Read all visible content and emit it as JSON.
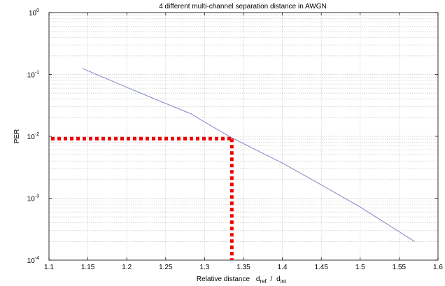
{
  "chart_data": {
    "type": "line",
    "title": "4 different multi-channel separation distance in AWGN",
    "xlabel": {
      "prefix": "Relative distance",
      "num_base": "d",
      "num_sub": "ref",
      "sep": "/",
      "den_base": "d",
      "den_sub": "int"
    },
    "ylabel": "PER",
    "xlim": [
      1.1,
      1.6
    ],
    "ylim": [
      0.0001,
      1
    ],
    "yscale": "log",
    "grid": true,
    "x_ticks": [
      "1.1",
      "1.15",
      "1.2",
      "1.25",
      "1.3",
      "1.35",
      "1.4",
      "1.45",
      "1.5",
      "1.55",
      "1.6"
    ],
    "y_ticks": [
      {
        "base": "10",
        "exp": "0",
        "value": 1
      },
      {
        "base": "10",
        "exp": "-1",
        "value": 0.1
      },
      {
        "base": "10",
        "exp": "-2",
        "value": 0.01
      },
      {
        "base": "10",
        "exp": "-3",
        "value": 0.001
      },
      {
        "base": "10",
        "exp": "-4",
        "value": 0.0001
      }
    ],
    "series": [
      {
        "color": "#8088c0",
        "x": [
          1.143,
          1.2,
          1.25,
          1.283,
          1.3,
          1.335,
          1.4,
          1.45,
          1.5,
          1.57
        ],
        "y": [
          0.125,
          0.062,
          0.034,
          0.023,
          0.017,
          0.0095,
          0.0037,
          0.00165,
          0.00072,
          0.0002
        ]
      }
    ],
    "annotations": [
      {
        "type": "crosshair",
        "x": 1.335,
        "y": 0.0092,
        "color": "#ee0000",
        "style": "dotted"
      }
    ]
  }
}
